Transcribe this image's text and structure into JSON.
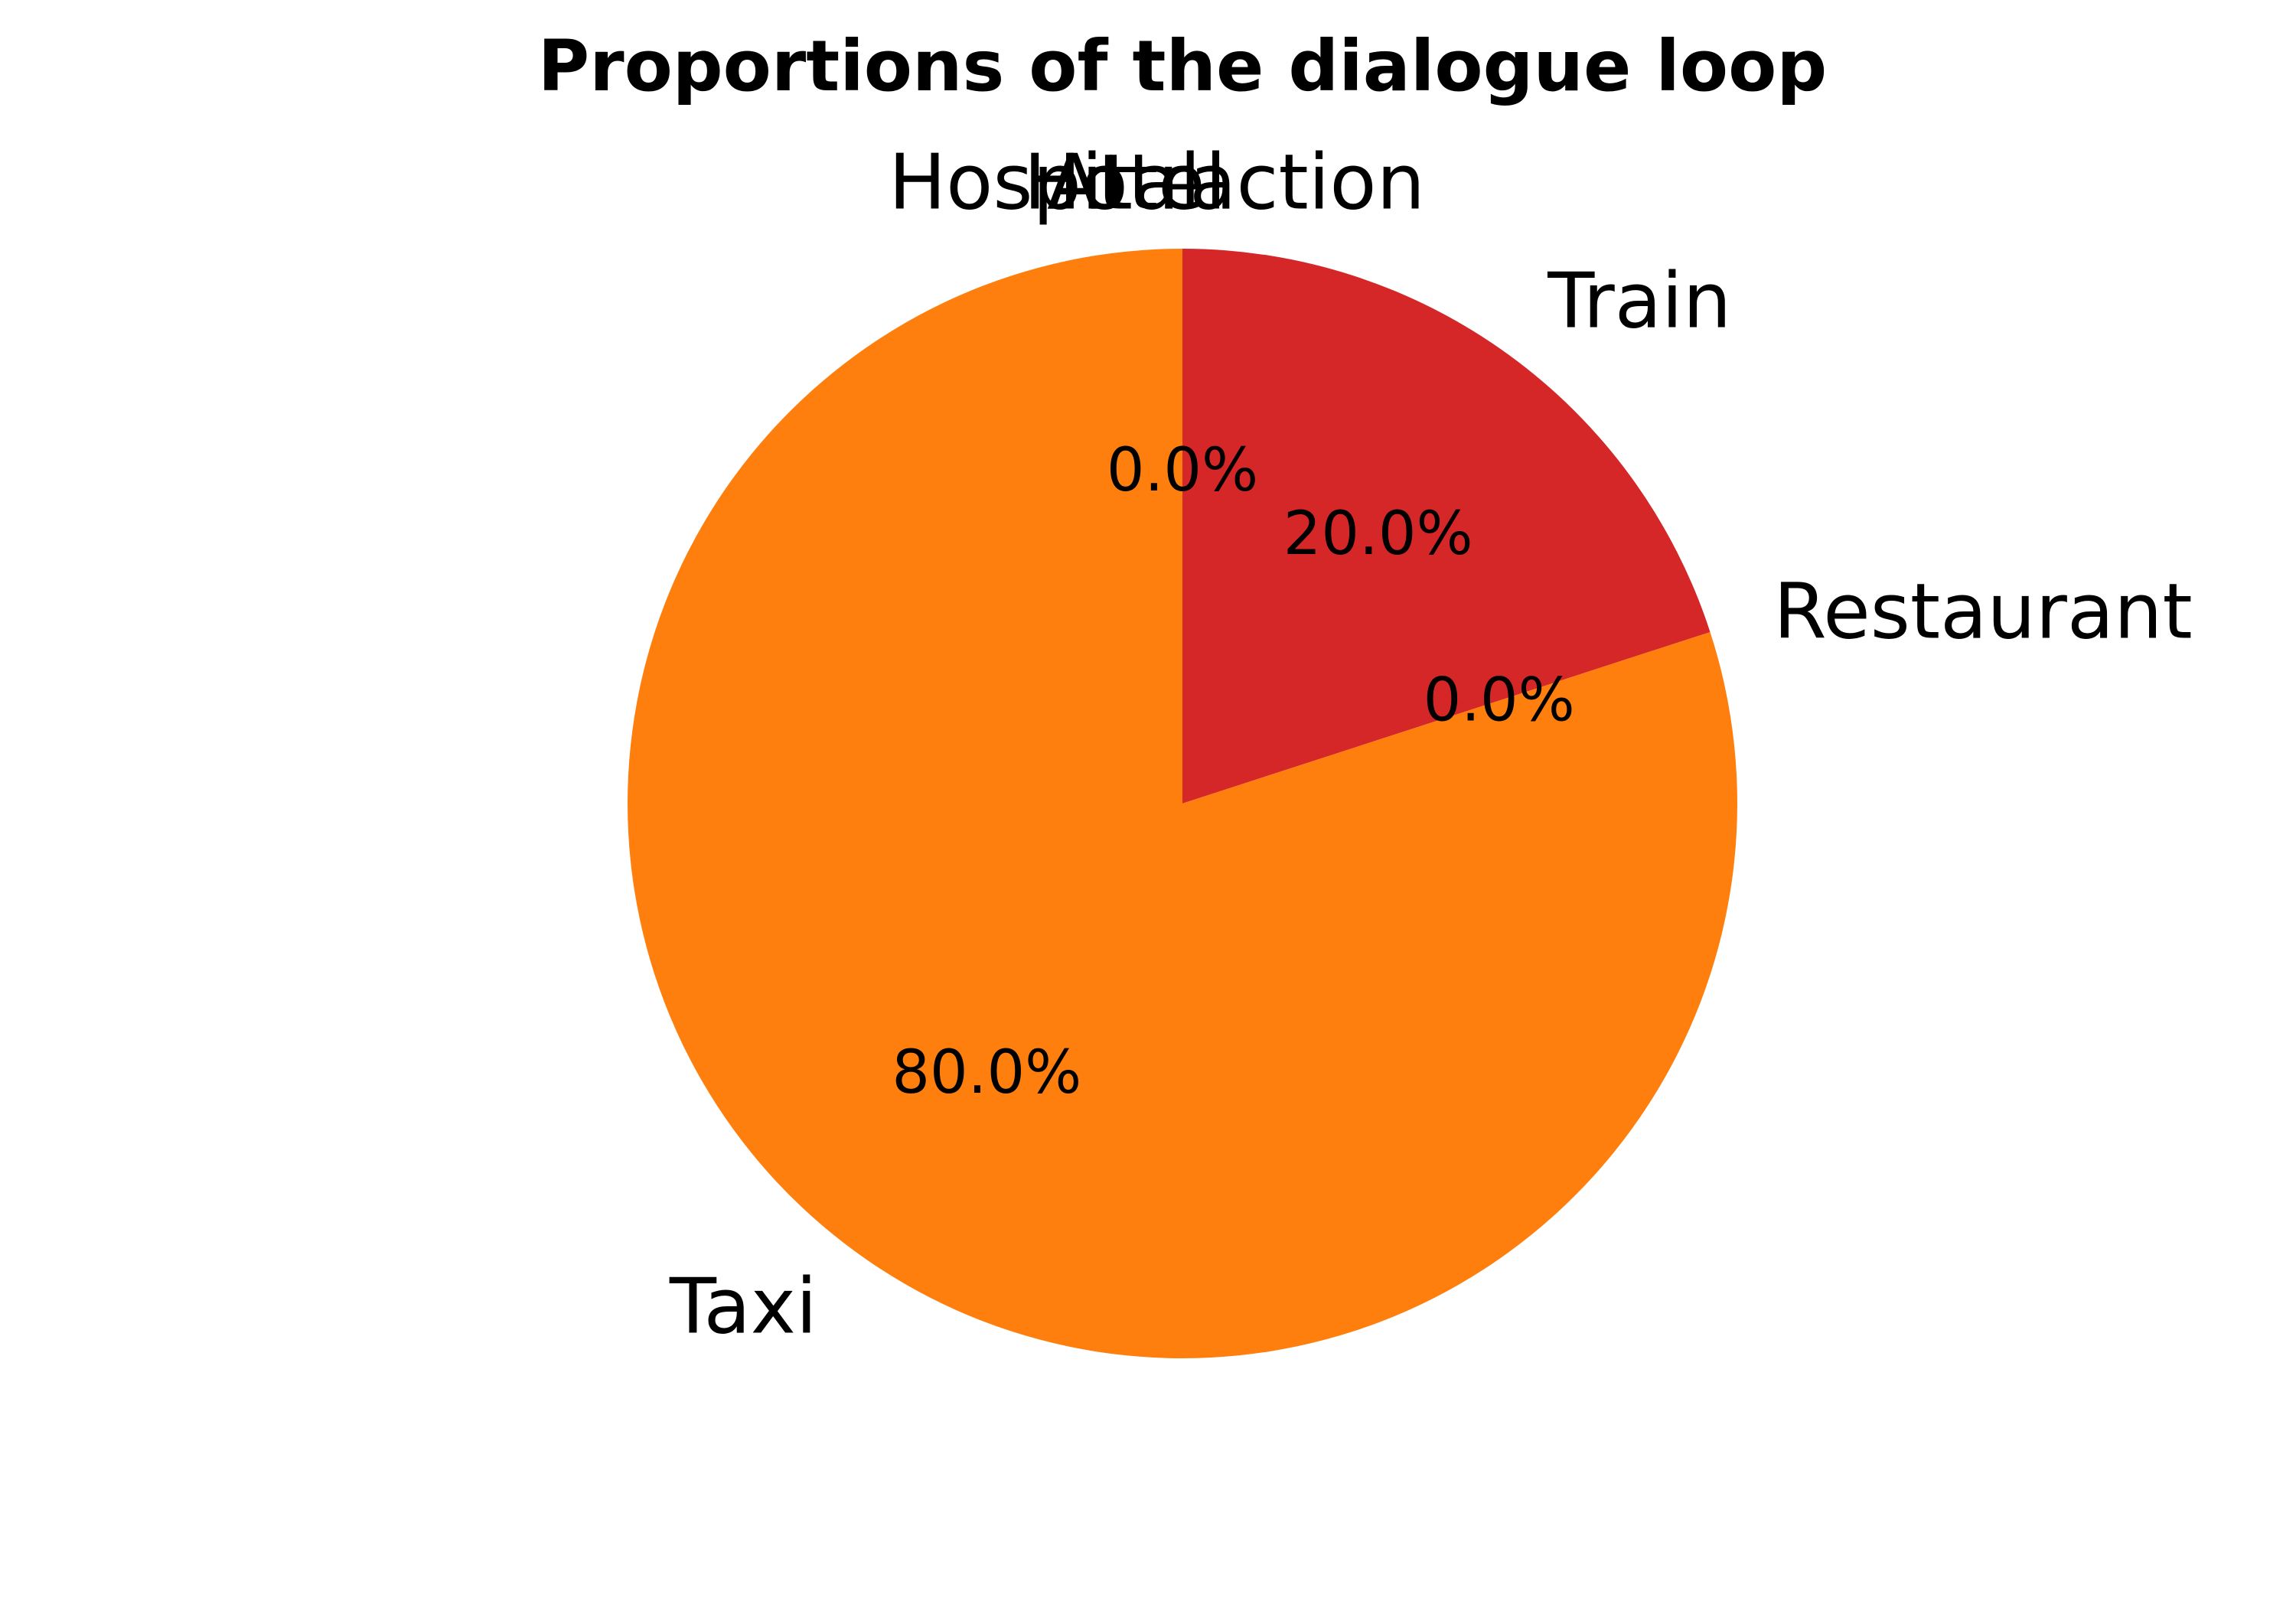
{
  "chart_data": {
    "type": "pie",
    "title": "Proportions of the dialogue loop",
    "slices": [
      {
        "label": "Hospital",
        "value": 0.0,
        "percent_label": "",
        "color": "#1f77b4"
      },
      {
        "label": "Hotel",
        "value": 0.0,
        "percent_label": "",
        "color": "#2ca02c"
      },
      {
        "label": "Attraction",
        "value": 0.0,
        "percent_label": "0.0%",
        "color": "#9467bd"
      },
      {
        "label": "Train",
        "value": 20.0,
        "percent_label": "20.0%",
        "color": "#d62728"
      },
      {
        "label": "Restaurant",
        "value": 0.0,
        "percent_label": "0.0%",
        "color": "#8c564b"
      },
      {
        "label": "Taxi",
        "value": 80.0,
        "percent_label": "80.0%",
        "color": "#ff7f0e"
      }
    ],
    "start_angle": "top",
    "direction": "clockwise",
    "legend": "none"
  }
}
